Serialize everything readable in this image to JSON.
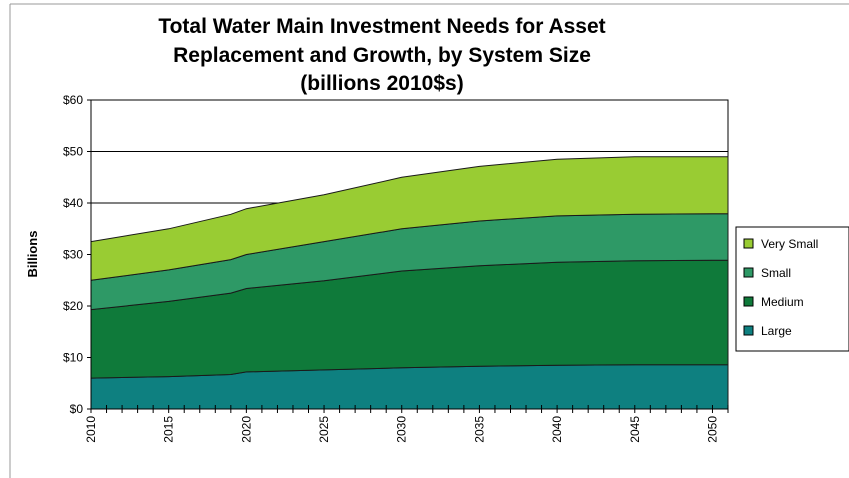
{
  "chart_data": {
    "type": "area",
    "stacked": true,
    "title": "Total Water Main Investment Needs for Asset Replacement and Growth, by System Size (billions 2010$s)",
    "title_lines": [
      "Total Water Main Investment Needs for Asset",
      "Replacement and Growth, by System Size",
      "(billions 2010$s)"
    ],
    "xlabel": "",
    "ylabel": "Billions",
    "x": [
      2010,
      2015,
      2019,
      2020,
      2025,
      2030,
      2035,
      2040,
      2045,
      2050,
      2051
    ],
    "x_tick_labels": [
      "2010",
      "2015",
      "2020",
      "2025",
      "2030",
      "2035",
      "2040",
      "2045",
      "2050"
    ],
    "x_tick_values": [
      2010,
      2015,
      2020,
      2025,
      2030,
      2035,
      2040,
      2045,
      2050
    ],
    "xlim": [
      2010,
      2051
    ],
    "ylim": [
      0,
      60
    ],
    "y_tick_values": [
      0,
      10,
      20,
      30,
      40,
      50,
      60
    ],
    "y_tick_labels": [
      "$0",
      "$10",
      "$20",
      "$30",
      "$40",
      "$50",
      "$60"
    ],
    "gridlines_y": [
      40,
      50,
      60
    ],
    "legend_position": "right",
    "series": [
      {
        "name": "Large",
        "color": "#0e8080",
        "values": [
          6.0,
          6.3,
          6.7,
          7.2,
          7.6,
          8.0,
          8.3,
          8.5,
          8.6,
          8.6,
          8.6
        ]
      },
      {
        "name": "Medium",
        "color": "#0f7a3a",
        "values": [
          13.3,
          14.6,
          15.8,
          16.2,
          17.3,
          18.8,
          19.5,
          20.0,
          20.2,
          20.3,
          20.3
        ]
      },
      {
        "name": "Small",
        "color": "#2e9966",
        "values": [
          5.7,
          6.1,
          6.5,
          6.6,
          7.6,
          8.2,
          8.7,
          9.0,
          9.0,
          9.0,
          9.0
        ]
      },
      {
        "name": "Very Small",
        "color": "#99cc33",
        "values": [
          7.5,
          8.0,
          8.8,
          8.9,
          9.1,
          10.0,
          10.6,
          11.0,
          11.2,
          11.1,
          11.1
        ]
      }
    ],
    "legend_order": [
      "Very Small",
      "Small",
      "Medium",
      "Large"
    ]
  }
}
